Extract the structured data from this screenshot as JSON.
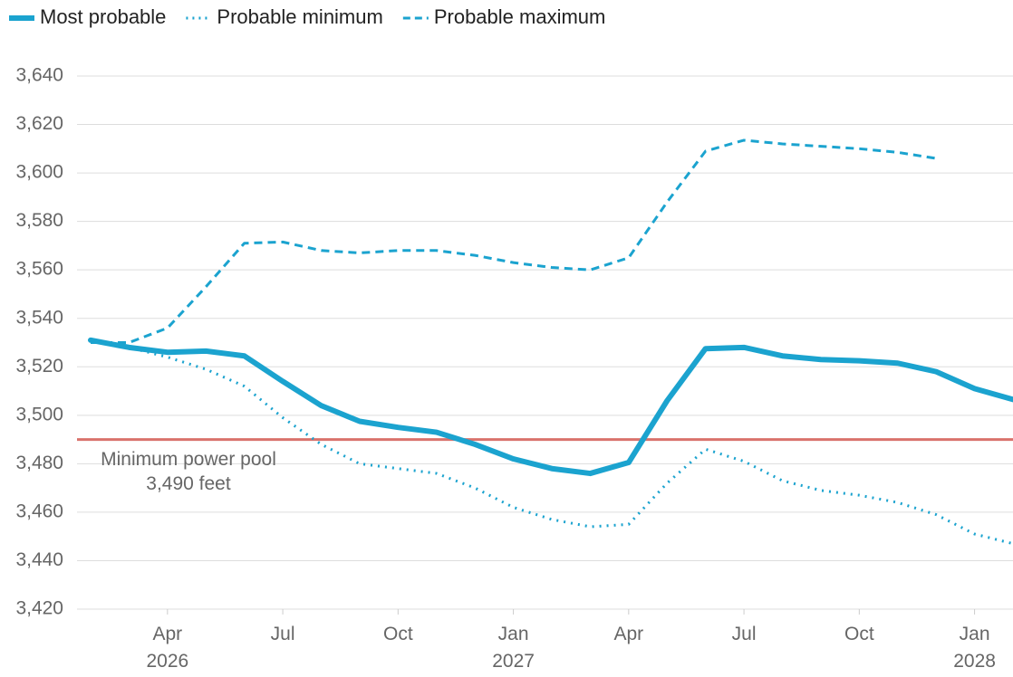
{
  "chart_data": {
    "type": "line",
    "x": [
      "2026-02",
      "2026-03",
      "2026-04",
      "2026-05",
      "2026-06",
      "2026-07",
      "2026-08",
      "2026-09",
      "2026-10",
      "2026-11",
      "2026-12",
      "2027-01",
      "2027-02",
      "2027-03",
      "2027-04",
      "2027-05",
      "2027-06",
      "2027-07",
      "2027-08",
      "2027-09",
      "2027-10",
      "2027-11",
      "2027-12",
      "2028-01",
      "2028-02"
    ],
    "series": [
      {
        "name": "Most probable",
        "color": "#1ba3cf",
        "style": "solid",
        "values": [
          3531,
          3528,
          3526,
          3526.5,
          3524.5,
          3514,
          3504,
          3497.5,
          3495,
          3493,
          3488,
          3482,
          3478,
          3476,
          3480.5,
          3506,
          3527.5,
          3528,
          3524.5,
          3523,
          3522.5,
          3521.5,
          3518,
          3511,
          3506.5
        ]
      },
      {
        "name": "Probable minimum",
        "color": "#1ba3cf",
        "style": "dotted",
        "values": [
          3531,
          3528,
          3524,
          3519,
          3512,
          3499,
          3488,
          3480,
          3478,
          3476,
          3470,
          3462,
          3457,
          3454,
          3455,
          3472,
          3486,
          3481,
          3473,
          3469,
          3467,
          3464,
          3459,
          3451,
          3447
        ]
      },
      {
        "name": "Probable maximum",
        "color": "#1ba3cf",
        "style": "dashed",
        "values": [
          3530,
          3530,
          3536,
          3553,
          3571,
          3571.5,
          3568,
          3567,
          3568,
          3568,
          3566,
          3563,
          3561,
          3560,
          3565,
          3588,
          3609,
          3613.5,
          3612,
          3611,
          3610,
          3608.5,
          3606,
          null,
          null
        ]
      }
    ],
    "xlim": [
      "2026-02",
      "2028-02"
    ],
    "xticks": [
      {
        "value": "2026-04",
        "label": "Apr 2026"
      },
      {
        "value": "2026-07",
        "label": "Jul"
      },
      {
        "value": "2026-10",
        "label": "Oct"
      },
      {
        "value": "2027-01",
        "label": "Jan 2027"
      },
      {
        "value": "2027-04",
        "label": "Apr"
      },
      {
        "value": "2027-07",
        "label": "Jul"
      },
      {
        "value": "2027-10",
        "label": "Oct"
      },
      {
        "value": "2028-01",
        "label": "Jan 2028"
      }
    ],
    "ylim": [
      3420,
      3640
    ],
    "yticks": [
      {
        "value": 3420,
        "label": "3,420"
      },
      {
        "value": 3440,
        "label": "3,440"
      },
      {
        "value": 3460,
        "label": "3,460"
      },
      {
        "value": 3480,
        "label": "3,480"
      },
      {
        "value": 3500,
        "label": "3,500"
      },
      {
        "value": 3520,
        "label": "3,520"
      },
      {
        "value": 3540,
        "label": "3,540"
      },
      {
        "value": 3560,
        "label": "3,560"
      },
      {
        "value": 3580,
        "label": "3,580"
      },
      {
        "value": 3600,
        "label": "3,600"
      },
      {
        "value": 3620,
        "label": "3,620"
      },
      {
        "value": 3640,
        "label": "3,640"
      }
    ],
    "grid": true,
    "reference_line": {
      "value": 3490,
      "color": "#d9726c"
    },
    "annotation": [
      "Minimum power pool",
      "3,490 feet"
    ]
  }
}
